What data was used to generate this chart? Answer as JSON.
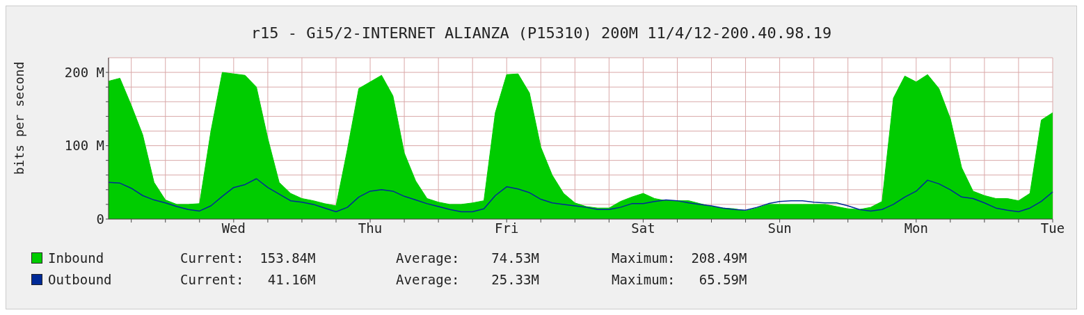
{
  "chart_data": {
    "type": "area",
    "title": "r15 - Gi5/2-INTERNET ALIANZA (P15310) 200M 11/4/12-200.40.98.19",
    "ylabel": "bits per second",
    "categories": [
      null,
      null,
      null,
      null,
      null,
      null,
      null,
      null,
      null,
      null,
      null,
      "Wed",
      null,
      null,
      null,
      null,
      null,
      null,
      null,
      null,
      null,
      null,
      null,
      "Thu",
      null,
      null,
      null,
      null,
      null,
      null,
      null,
      null,
      null,
      null,
      null,
      "Fri",
      null,
      null,
      null,
      null,
      null,
      null,
      null,
      null,
      null,
      null,
      null,
      "Sat",
      null,
      null,
      null,
      null,
      null,
      null,
      null,
      null,
      null,
      null,
      null,
      "Sun",
      null,
      null,
      null,
      null,
      null,
      null,
      null,
      null,
      null,
      null,
      null,
      "Mon",
      null,
      null,
      null,
      null,
      null,
      null,
      null,
      null,
      null,
      null,
      null,
      "Tue"
    ],
    "ylim": [
      0,
      220
    ],
    "yticks": [
      0,
      {
        "value": 20,
        "label": null
      },
      {
        "value": 40,
        "label": null
      },
      {
        "value": 60,
        "label": null
      },
      {
        "value": 80,
        "label": null
      },
      {
        "value": 100,
        "label": "100 M"
      },
      {
        "value": 120,
        "label": null
      },
      {
        "value": 140,
        "label": null
      },
      {
        "value": 160,
        "label": null
      },
      {
        "value": 180,
        "label": null
      },
      {
        "value": 200,
        "label": "200 M"
      }
    ],
    "grid": true,
    "legend": "bottom",
    "series": [
      {
        "name": "Inbound",
        "color": "#00cc00",
        "values": [
          188,
          192,
          155,
          115,
          50,
          26,
          20,
          20,
          21,
          120,
          200,
          198,
          196,
          180,
          110,
          50,
          35,
          28,
          25,
          21,
          18,
          95,
          178,
          187,
          196,
          168,
          90,
          52,
          28,
          23,
          20,
          20,
          22,
          25,
          145,
          197,
          198,
          172,
          98,
          60,
          35,
          22,
          17,
          15,
          15,
          24,
          30,
          35,
          28,
          25,
          25,
          25,
          21,
          17,
          15,
          14,
          11,
          15,
          20,
          20,
          20,
          20,
          20,
          20,
          17,
          14,
          13,
          16,
          24,
          165,
          195,
          187,
          197,
          178,
          137,
          70,
          38,
          32,
          28,
          28,
          25,
          35,
          135,
          145
        ]
      },
      {
        "name": "Outbound",
        "type": "line",
        "color": "#002a97",
        "values": [
          50,
          49,
          42,
          32,
          26,
          22,
          17,
          13,
          11,
          18,
          31,
          43,
          47,
          55,
          43,
          34,
          25,
          23,
          20,
          15,
          10,
          16,
          30,
          38,
          40,
          38,
          31,
          26,
          21,
          17,
          13,
          10,
          10,
          14,
          32,
          44,
          41,
          36,
          27,
          22,
          20,
          18,
          16,
          13,
          13,
          16,
          21,
          21,
          24,
          26,
          25,
          22,
          20,
          18,
          15,
          13,
          12,
          16,
          21,
          24,
          25,
          25,
          23,
          22,
          22,
          18,
          13,
          11,
          13,
          20,
          30,
          38,
          53,
          48,
          40,
          30,
          28,
          22,
          15,
          12,
          10,
          15,
          24,
          37
        ]
      }
    ],
    "annotations": [
      "Current:  153.84M",
      "Average:    74.53M",
      "Maximum:  208.49M",
      "Current:   41.16M",
      "Average:    25.33M",
      "Maximum:   65.59M"
    ]
  }
}
